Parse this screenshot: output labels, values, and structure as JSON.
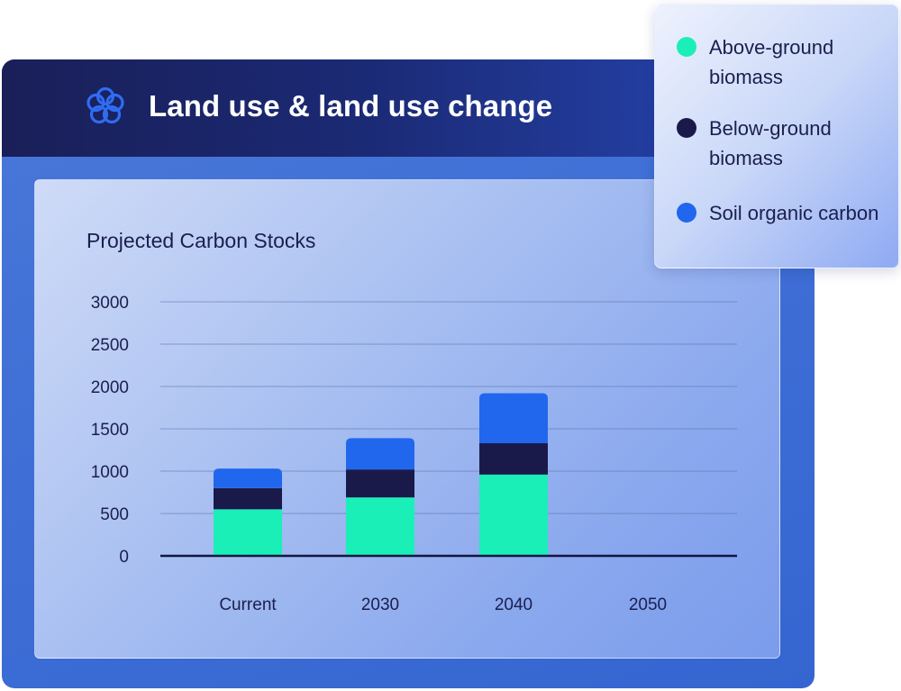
{
  "header": {
    "title": "Land use & land use change",
    "logo_icon": "flower-logo-icon"
  },
  "legend": {
    "items": [
      {
        "label": "Above-ground biomass",
        "color": "#1aefb8"
      },
      {
        "label": "Below-ground biomass",
        "color": "#1a1a4a"
      },
      {
        "label": "Soil organic carbon",
        "color": "#2067ee"
      }
    ]
  },
  "colors": {
    "header_dark": "#1a1f58",
    "card_blue": "#3f6fd6",
    "above_ground": "#1aefb8",
    "below_ground": "#1a1a4a",
    "soil": "#2067ee"
  },
  "chart_data": {
    "type": "bar",
    "stacked": true,
    "title": "Projected Carbon Stocks",
    "xlabel": "",
    "ylabel": "",
    "ylim": [
      0,
      3000
    ],
    "yticks": [
      0,
      500,
      1000,
      1500,
      2000,
      2500,
      3000
    ],
    "grid": true,
    "legend_position": "top-right",
    "categories": [
      "Current",
      "2030",
      "2040",
      "2050"
    ],
    "series": [
      {
        "name": "Above-ground biomass",
        "values": [
          550,
          690,
          960,
          0
        ]
      },
      {
        "name": "Below-ground biomass",
        "values": [
          250,
          330,
          370,
          0
        ]
      },
      {
        "name": "Soil organic carbon",
        "values": [
          230,
          370,
          590,
          0
        ]
      }
    ]
  }
}
